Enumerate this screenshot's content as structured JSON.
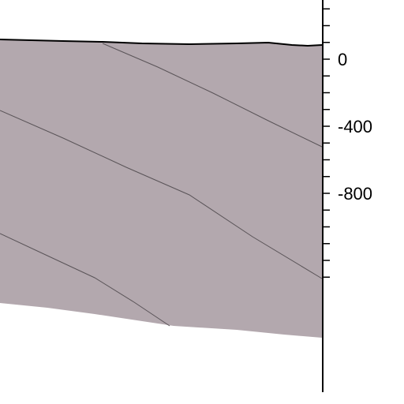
{
  "figure": {
    "description_type": "geologic-cross-section",
    "fill_color": "#b3a8ae",
    "line_color": "#000000",
    "background_color": "#ffffff"
  },
  "depth_axis": {
    "ticks": [
      {
        "value": 0,
        "label": "0"
      },
      {
        "value": -400,
        "label": "-400"
      },
      {
        "value": -800,
        "label": "-800"
      }
    ],
    "minor_tick_step": 100,
    "range": [
      -1300,
      300
    ]
  }
}
